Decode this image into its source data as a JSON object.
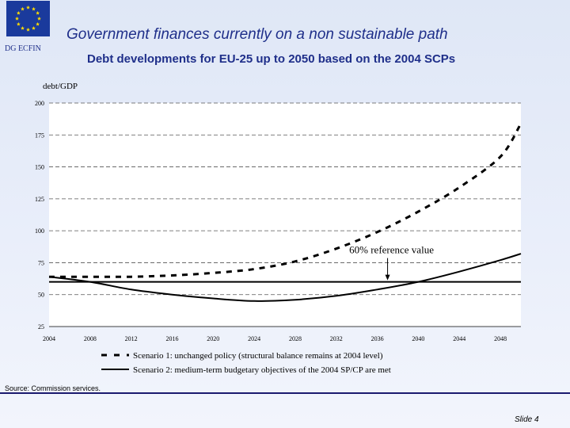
{
  "header": {
    "org": "DG ECFIN",
    "title": "Government finances currently on a non sustainable path",
    "subtitle": "Debt developments for EU-25 up to 2050 based on the 2004 SCPs"
  },
  "footer": {
    "source": "Source: Commission services.",
    "slide": "Slide 4"
  },
  "colors": {
    "brand": "#1f2f8a",
    "flag": "#1a3a9c",
    "stars": "#ffdd00"
  },
  "chart_data": {
    "type": "line",
    "title": "",
    "ylabel": "debt/GDP",
    "xlabel": "",
    "xlim": [
      2004,
      2050
    ],
    "ylim": [
      25,
      200
    ],
    "yticks": [
      25,
      50,
      75,
      100,
      125,
      150,
      175,
      200
    ],
    "xtick_labels": [
      "2004",
      "2008",
      "2012",
      "2016",
      "2020",
      "2024",
      "2028",
      "2032",
      "2036",
      "2040",
      "2044",
      "2048"
    ],
    "xtick_values": [
      2004,
      2008,
      2012,
      2016,
      2020,
      2024,
      2028,
      2032,
      2036,
      2040,
      2044,
      2048
    ],
    "grid": "horizontal dashed",
    "series": [
      {
        "name": "Scenario 1: unchanged policy (structural balance remains at 2004 level)",
        "style": "dashed",
        "x": [
          2004,
          2008,
          2012,
          2016,
          2020,
          2024,
          2028,
          2032,
          2036,
          2040,
          2044,
          2048,
          2050
        ],
        "y": [
          64,
          64,
          64,
          65,
          67,
          70,
          76,
          86,
          99,
          115,
          134,
          158,
          184
        ]
      },
      {
        "name": "Scenario 2: medium-term budgetary objectives of the 2004 SP/CP are met",
        "style": "solid",
        "x": [
          2004,
          2008,
          2012,
          2016,
          2020,
          2024,
          2028,
          2032,
          2036,
          2040,
          2044,
          2048,
          2050
        ],
        "y": [
          64,
          60,
          54,
          50,
          47,
          45,
          46,
          49,
          54,
          60,
          68,
          77,
          82
        ]
      },
      {
        "name": "60% reference value",
        "style": "solid",
        "x": [
          2004,
          2050
        ],
        "y": [
          60,
          60
        ]
      }
    ],
    "annotations": [
      {
        "text": "60% reference value",
        "x": 2037,
        "y": 60
      }
    ]
  }
}
